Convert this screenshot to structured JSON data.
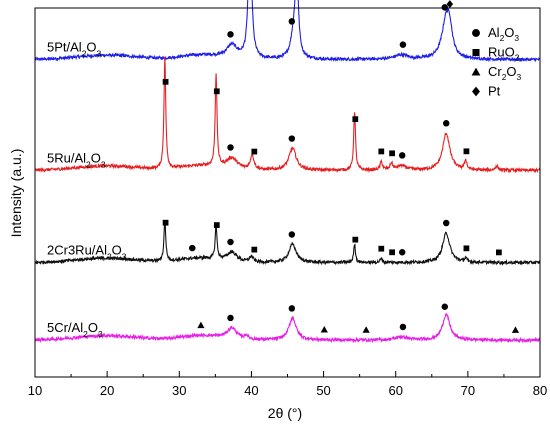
{
  "chart_data": {
    "type": "line",
    "title": "",
    "xlabel": "2θ (°)",
    "ylabel": "Intensity (a.u.)",
    "xlim": [
      10,
      80
    ],
    "xticks": [
      "10",
      "20",
      "30",
      "40",
      "50",
      "60",
      "70",
      "80"
    ],
    "legend": {
      "placement": "top-right",
      "entries": [
        {
          "marker": "circle",
          "label_parts": [
            "Al",
            "2",
            "O",
            "3"
          ]
        },
        {
          "marker": "square",
          "label_parts": [
            "RuO",
            "2"
          ]
        },
        {
          "marker": "triangle",
          "label_parts": [
            "Cr",
            "2",
            "O",
            "3"
          ]
        },
        {
          "marker": "diamond",
          "label_parts": [
            "Pt"
          ]
        }
      ]
    },
    "series": [
      {
        "name": "5Pt/Al2O3",
        "label_parts": [
          "5Pt/Al",
          "2",
          "O",
          "3"
        ],
        "color": "#1f1fe6",
        "baseline": 0.86,
        "peaks": [
          [
            37.3,
            0.035,
            0.9
          ],
          [
            39.8,
            0.4,
            0.25
          ],
          [
            45.9,
            0.07,
            0.5
          ],
          [
            46.3,
            0.21,
            0.25
          ],
          [
            60.8,
            0.012,
            1.2
          ],
          [
            67.0,
            0.11,
            0.7
          ],
          [
            67.5,
            0.05,
            0.4
          ]
        ],
        "markers": [
          {
            "type": "circle",
            "x": 37.1
          },
          {
            "type": "diamond",
            "x": 39.8
          },
          {
            "type": "circle",
            "x": 45.6
          },
          {
            "type": "diamond",
            "x": 46.5
          },
          {
            "type": "circle",
            "x": 61.0
          },
          {
            "type": "circle",
            "x": 66.8
          },
          {
            "type": "diamond",
            "x": 67.5
          }
        ]
      },
      {
        "name": "5Ru/Al2O3",
        "label_parts": [
          "5Ru/Al",
          "2",
          "O",
          "3"
        ],
        "color": "#e62020",
        "baseline": 0.56,
        "peaks": [
          [
            28.0,
            0.3,
            0.15
          ],
          [
            35.1,
            0.25,
            0.15
          ],
          [
            37.3,
            0.03,
            0.9
          ],
          [
            40.1,
            0.04,
            0.3
          ],
          [
            45.7,
            0.06,
            0.6
          ],
          [
            54.3,
            0.16,
            0.15
          ],
          [
            58.0,
            0.022,
            0.2
          ],
          [
            59.4,
            0.018,
            0.2
          ],
          [
            60.8,
            0.012,
            0.8
          ],
          [
            67.0,
            0.1,
            0.6
          ],
          [
            69.7,
            0.026,
            0.18
          ],
          [
            74.0,
            0.012,
            0.2
          ]
        ],
        "markers": [
          {
            "type": "square",
            "x": 28.1
          },
          {
            "type": "square",
            "x": 35.2
          },
          {
            "type": "circle",
            "x": 37.1
          },
          {
            "type": "square",
            "x": 40.4
          },
          {
            "type": "circle",
            "x": 45.6
          },
          {
            "type": "square",
            "x": 54.4
          },
          {
            "type": "square",
            "x": 58.0
          },
          {
            "type": "square",
            "x": 59.5
          },
          {
            "type": "circle",
            "x": 60.9
          },
          {
            "type": "circle",
            "x": 67.0
          },
          {
            "type": "square",
            "x": 69.8
          }
        ]
      },
      {
        "name": "2Cr3Ru/Al2O3",
        "label_parts": [
          "2Cr3Ru/Al",
          "2",
          "O",
          "3"
        ],
        "color": "#111111",
        "baseline": 0.31,
        "peaks": [
          [
            28.0,
            0.11,
            0.15
          ],
          [
            35.1,
            0.09,
            0.15
          ],
          [
            37.3,
            0.025,
            0.8
          ],
          [
            40.0,
            0.015,
            0.3
          ],
          [
            45.7,
            0.05,
            0.6
          ],
          [
            54.3,
            0.05,
            0.15
          ],
          [
            58.0,
            0.01,
            0.2
          ],
          [
            67.0,
            0.08,
            0.6
          ],
          [
            69.7,
            0.01,
            0.2
          ]
        ],
        "markers": [
          {
            "type": "square",
            "x": 28.1
          },
          {
            "type": "circle",
            "x": 31.8
          },
          {
            "type": "square",
            "x": 35.2
          },
          {
            "type": "circle",
            "x": 37.1
          },
          {
            "type": "square",
            "x": 40.4
          },
          {
            "type": "circle",
            "x": 45.6
          },
          {
            "type": "square",
            "x": 54.4
          },
          {
            "type": "square",
            "x": 58.0
          },
          {
            "type": "square",
            "x": 59.5
          },
          {
            "type": "circle",
            "x": 60.9
          },
          {
            "type": "circle",
            "x": 67.0
          },
          {
            "type": "square",
            "x": 69.8
          },
          {
            "type": "square",
            "x": 74.3
          }
        ]
      },
      {
        "name": "5Cr/Al2O3",
        "label_parts": [
          "5Cr/Al",
          "2",
          "O",
          "3"
        ],
        "color": "#e620e6",
        "baseline": 0.1,
        "peaks": [
          [
            37.3,
            0.03,
            0.8
          ],
          [
            39.3,
            0.01,
            0.3
          ],
          [
            45.7,
            0.06,
            0.6
          ],
          [
            60.8,
            0.008,
            1.0
          ],
          [
            67.0,
            0.07,
            0.6
          ]
        ],
        "markers": [
          {
            "type": "triangle",
            "x": 33.0
          },
          {
            "type": "circle",
            "x": 37.1
          },
          {
            "type": "circle",
            "x": 45.6
          },
          {
            "type": "triangle",
            "x": 50.1
          },
          {
            "type": "triangle",
            "x": 55.9
          },
          {
            "type": "circle",
            "x": 61.0
          },
          {
            "type": "circle",
            "x": 66.8
          },
          {
            "type": "triangle",
            "x": 76.6
          }
        ]
      }
    ]
  }
}
